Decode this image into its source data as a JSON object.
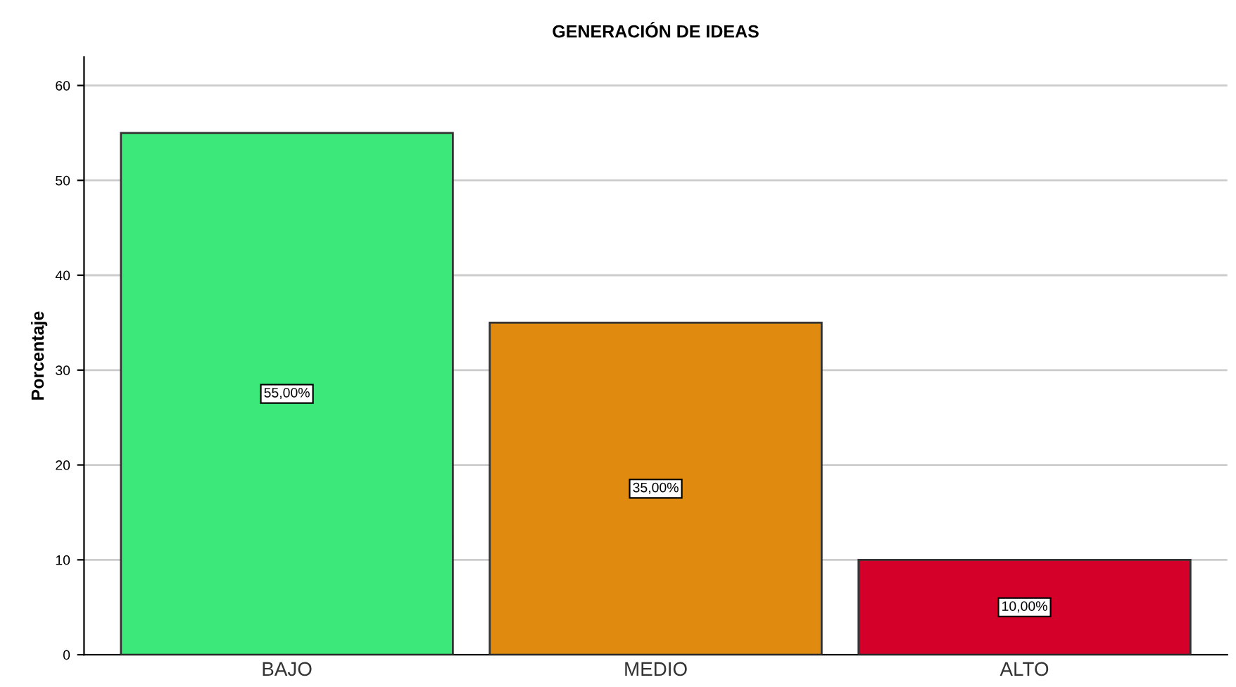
{
  "chart_data": {
    "type": "bar",
    "title": "GENERACIÓN DE IDEAS",
    "ylabel": "Porcentaje",
    "categories": [
      "BAJO",
      "MEDIO",
      "ALTO"
    ],
    "values": [
      55,
      35,
      10
    ],
    "colors": [
      "#3de87a",
      "#e08a10",
      "#d4002a"
    ],
    "value_labels": [
      "55,00%",
      "35,00%",
      "10,00%"
    ],
    "ylim": [
      0,
      63
    ],
    "yticks": [
      0,
      10,
      20,
      30,
      40,
      50,
      60
    ],
    "grid": "y",
    "legend": false
  }
}
